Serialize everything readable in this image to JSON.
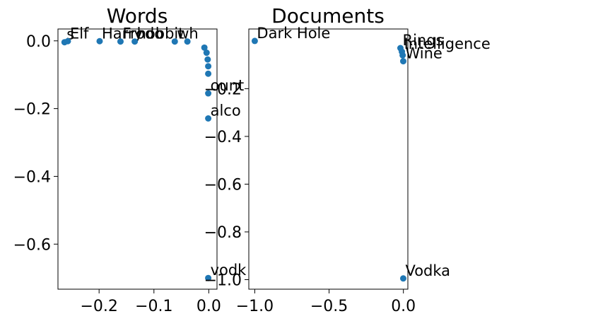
{
  "chart_data": [
    {
      "type": "scatter",
      "title": "Words",
      "xlabel": "",
      "ylabel": "",
      "xlim": [
        -0.275,
        0.015
      ],
      "ylim": [
        -0.733,
        0.035
      ],
      "xticks": [
        -0.2,
        -0.1,
        0.0
      ],
      "xtick_labels": [
        "−0.2",
        "−0.1",
        "0.0"
      ],
      "yticks": [
        0.0,
        -0.2,
        -0.4,
        -0.6
      ],
      "ytick_labels": [
        "0.0",
        "−0.2",
        "−0.4",
        "−0.6"
      ],
      "grid": false,
      "marker_color": "#1f77b4",
      "points": [
        {
          "x": -0.263,
          "y": -0.004,
          "label": "s"
        },
        {
          "x": -0.257,
          "y": -0.001,
          "label": "Elf"
        },
        {
          "x": -0.199,
          "y": -0.001,
          "label": "Harry"
        },
        {
          "x": -0.161,
          "y": -0.002,
          "label": "Frodo"
        },
        {
          "x": -0.135,
          "y": -0.002,
          "label": "hobbit"
        },
        {
          "x": -0.062,
          "y": -0.002,
          "label": "wh"
        },
        {
          "x": -0.039,
          "y": -0.002,
          "label": ""
        },
        {
          "x": -0.008,
          "y": -0.02,
          "label": ""
        },
        {
          "x": -0.004,
          "y": -0.035,
          "label": ""
        },
        {
          "x": -0.002,
          "y": -0.055,
          "label": ""
        },
        {
          "x": -0.001,
          "y": -0.075,
          "label": ""
        },
        {
          "x": -0.001,
          "y": -0.097,
          "label": ""
        },
        {
          "x": -0.001,
          "y": -0.155,
          "label": "ount"
        },
        {
          "x": -0.001,
          "y": -0.229,
          "label": "alco"
        },
        {
          "x": -0.001,
          "y": -0.7,
          "label": "vodk"
        }
      ]
    },
    {
      "type": "scatter",
      "title": "Documents",
      "xlabel": "",
      "ylabel": "",
      "xlim": [
        -1.04,
        0.03
      ],
      "ylim": [
        -1.04,
        0.05
      ],
      "xticks": [
        -1.0,
        -0.5,
        0.0
      ],
      "xtick_labels": [
        "−1.0",
        "−0.5",
        "0.0"
      ],
      "yticks": [
        -0.2,
        -0.4,
        -0.6,
        -0.8,
        -1.0
      ],
      "ytick_labels": [
        "−0.2",
        "−0.4",
        "−0.6",
        "−0.8",
        "−1.0"
      ],
      "grid": false,
      "marker_color": "#1f77b4",
      "points": [
        {
          "x": -1.0,
          "y": 0.0,
          "label": "Dark Hole"
        },
        {
          "x": -0.02,
          "y": -0.03,
          "label": "Rings"
        },
        {
          "x": -0.01,
          "y": -0.045,
          "label": "Intelligence"
        },
        {
          "x": -0.005,
          "y": -0.06,
          "label": ""
        },
        {
          "x": -0.001,
          "y": -0.085,
          "label": "Wine"
        },
        {
          "x": -0.001,
          "y": -0.995,
          "label": "Vodka"
        }
      ]
    }
  ]
}
